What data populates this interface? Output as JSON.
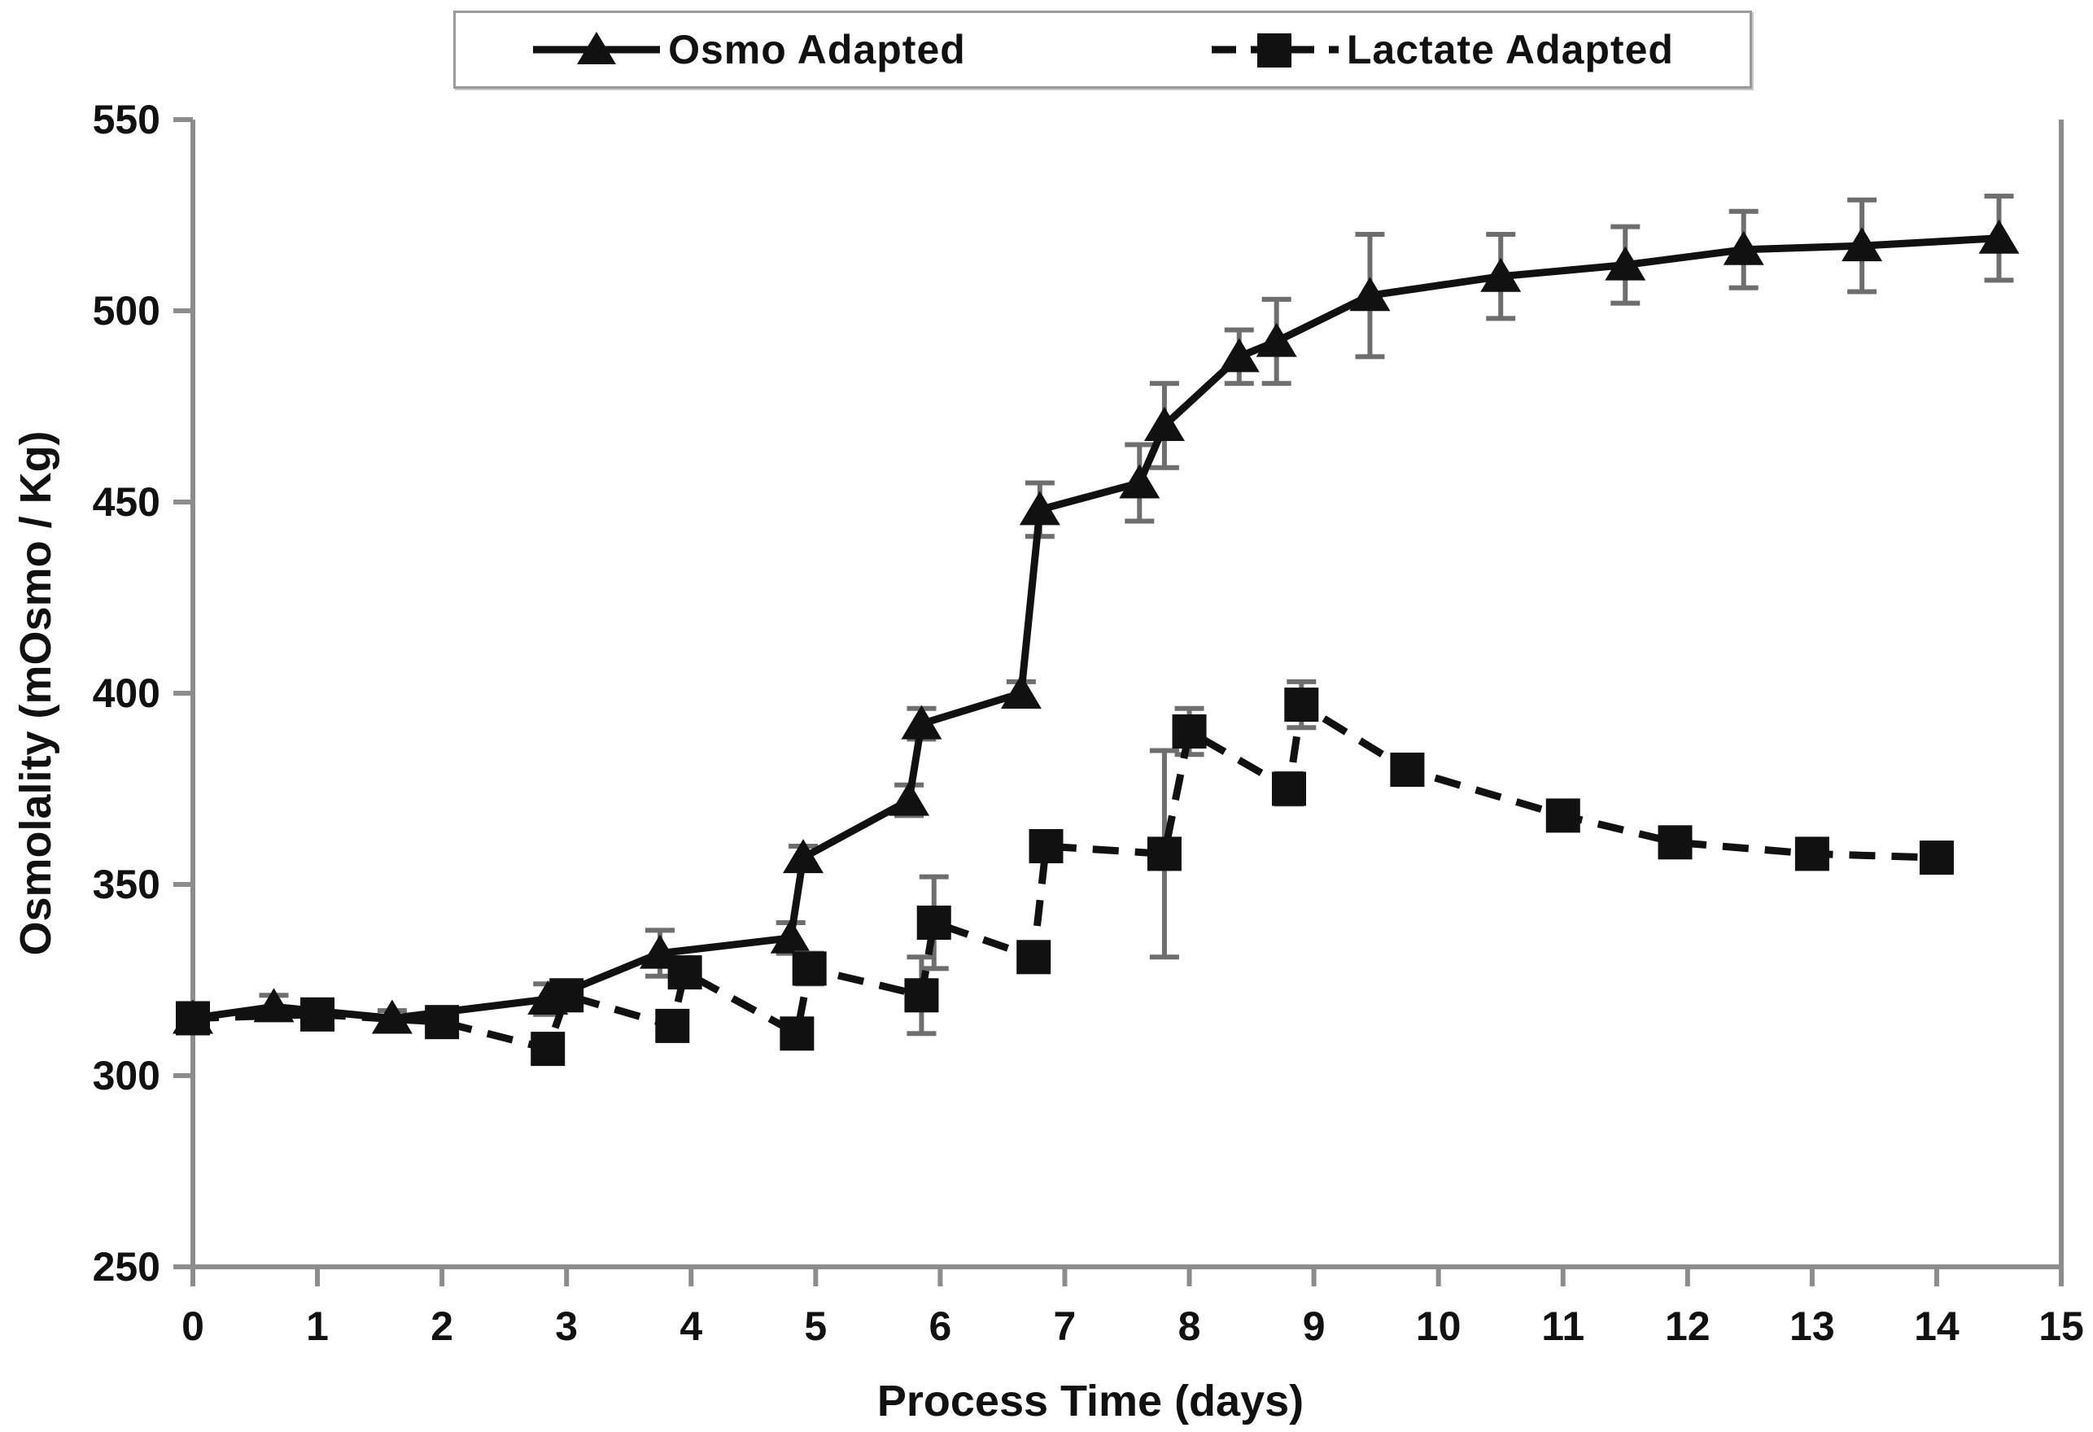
{
  "legend": {
    "items": [
      {
        "label": "Osmo Adapted",
        "marker": "triangle",
        "line": "solid"
      },
      {
        "label": "Lactate Adapted",
        "marker": "square",
        "line": "dashed"
      }
    ]
  },
  "chart_data": {
    "type": "line",
    "title": "",
    "xlabel": "Process Time (days)",
    "ylabel": "Osmolality (mOsmo / Kg)",
    "xlim": [
      0,
      15
    ],
    "ylim": [
      250,
      550
    ],
    "x_ticks": [
      0,
      1,
      2,
      3,
      4,
      5,
      6,
      7,
      8,
      9,
      10,
      11,
      12,
      13,
      14,
      15
    ],
    "y_ticks": [
      250,
      300,
      350,
      400,
      450,
      500,
      550
    ],
    "grid": false,
    "legend_position": "top-center",
    "colors": {
      "series": "#111111",
      "axis": "#8c8c8c",
      "error_bar": "#6e6e6e",
      "text": "#111111"
    },
    "series": [
      {
        "name": "Osmo Adapted",
        "marker": "triangle",
        "line_style": "solid",
        "points": [
          {
            "x": 0,
            "y": 315,
            "e": 0
          },
          {
            "x": 0.65,
            "y": 318,
            "e": 3
          },
          {
            "x": 1.6,
            "y": 315,
            "e": 2
          },
          {
            "x": 2.85,
            "y": 320,
            "e": 4
          },
          {
            "x": 3.75,
            "y": 332,
            "e": 6
          },
          {
            "x": 4.8,
            "y": 336,
            "e": 4
          },
          {
            "x": 4.9,
            "y": 357,
            "e": 3
          },
          {
            "x": 5.75,
            "y": 372,
            "e": 4
          },
          {
            "x": 5.85,
            "y": 392,
            "e": 4
          },
          {
            "x": 6.65,
            "y": 400,
            "e": 3
          },
          {
            "x": 6.8,
            "y": 448,
            "e": 7
          },
          {
            "x": 7.6,
            "y": 455,
            "e": 10
          },
          {
            "x": 7.8,
            "y": 470,
            "e": 11
          },
          {
            "x": 8.4,
            "y": 488,
            "e": 7
          },
          {
            "x": 8.7,
            "y": 492,
            "e": 11
          },
          {
            "x": 9.45,
            "y": 504,
            "e": 16
          },
          {
            "x": 10.5,
            "y": 509,
            "e": 11
          },
          {
            "x": 11.5,
            "y": 512,
            "e": 10
          },
          {
            "x": 12.45,
            "y": 516,
            "e": 10
          },
          {
            "x": 13.4,
            "y": 517,
            "e": 12
          },
          {
            "x": 14.5,
            "y": 519,
            "e": 11
          }
        ]
      },
      {
        "name": "Lactate Adapted",
        "marker": "square",
        "line_style": "dashed",
        "points": [
          {
            "x": 0,
            "y": 315,
            "e": 2
          },
          {
            "x": 1,
            "y": 316,
            "e": 2
          },
          {
            "x": 2,
            "y": 314,
            "e": 2
          },
          {
            "x": 2.85,
            "y": 307,
            "e": 3
          },
          {
            "x": 3.0,
            "y": 321,
            "e": 3
          },
          {
            "x": 3.85,
            "y": 313,
            "e": 3
          },
          {
            "x": 3.95,
            "y": 327,
            "e": 3
          },
          {
            "x": 4.85,
            "y": 311,
            "e": 3
          },
          {
            "x": 4.95,
            "y": 328,
            "e": 4
          },
          {
            "x": 5.85,
            "y": 321,
            "e": 10
          },
          {
            "x": 5.95,
            "y": 340,
            "e": 12
          },
          {
            "x": 6.75,
            "y": 331,
            "e": 3
          },
          {
            "x": 6.85,
            "y": 360,
            "e": 3
          },
          {
            "x": 7.8,
            "y": 358,
            "e": 27
          },
          {
            "x": 8.0,
            "y": 390,
            "e": 6
          },
          {
            "x": 8.8,
            "y": 375,
            "e": 4
          },
          {
            "x": 8.9,
            "y": 397,
            "e": 6
          },
          {
            "x": 9.75,
            "y": 380,
            "e": 3
          },
          {
            "x": 11.0,
            "y": 368,
            "e": 3
          },
          {
            "x": 11.9,
            "y": 361,
            "e": 3
          },
          {
            "x": 13.0,
            "y": 358,
            "e": 3
          },
          {
            "x": 14.0,
            "y": 357,
            "e": 3
          }
        ]
      }
    ]
  }
}
